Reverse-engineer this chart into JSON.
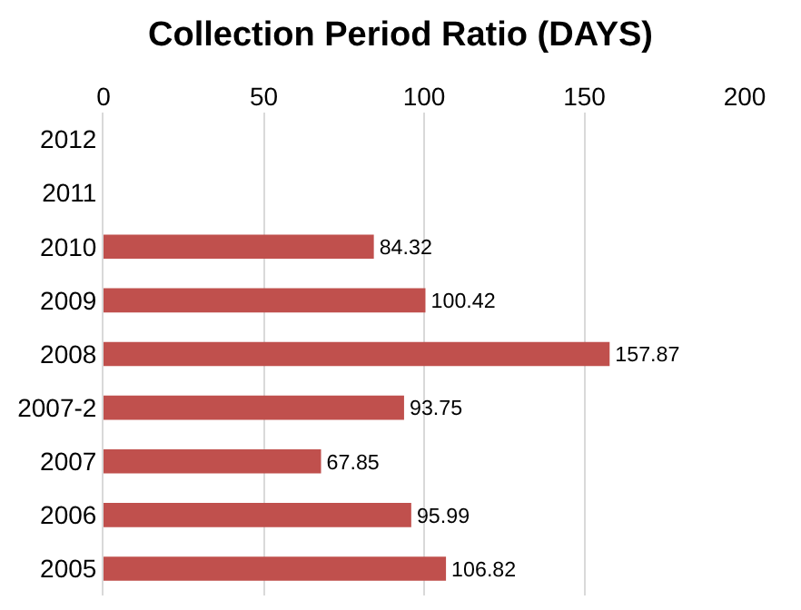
{
  "chart_data": {
    "type": "bar",
    "orientation": "horizontal",
    "title": "Collection Period Ratio (DAYS)",
    "categories": [
      "2012",
      "2011",
      "2010",
      "2009",
      "2008",
      "2007-2",
      "2007",
      "2006",
      "2005"
    ],
    "values": [
      null,
      null,
      84.32,
      100.42,
      157.87,
      93.75,
      67.85,
      95.99,
      106.82
    ],
    "color": "#c0504d",
    "xlim": [
      0,
      200
    ],
    "xticks": [
      0,
      50,
      100,
      150,
      200
    ],
    "grid": "x",
    "data_labels": true,
    "legend": false
  }
}
